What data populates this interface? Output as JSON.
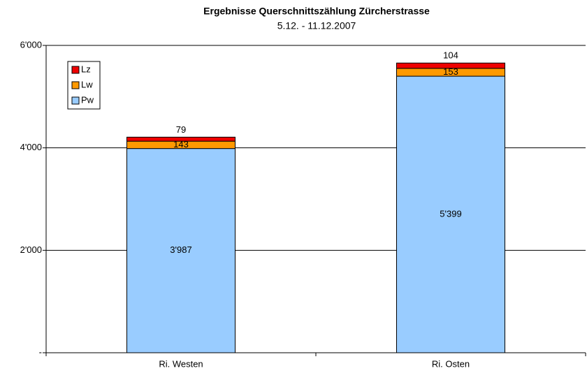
{
  "chart_data": {
    "type": "stacked_bar",
    "title": "Ergebnisse Querschnittszählung Zürcherstrasse",
    "subtitle": "5.12. - 11.12.2007",
    "categories": [
      "Ri. Westen",
      "Ri. Osten"
    ],
    "series": [
      {
        "name": "Pw",
        "color": "#99ccff",
        "values": [
          3987,
          5399
        ],
        "value_labels": [
          "3'987",
          "5'399"
        ]
      },
      {
        "name": "Lw",
        "color": "#ff9900",
        "values": [
          143,
          153
        ]
      },
      {
        "name": "Lz",
        "color": "#ee0000",
        "values": [
          79,
          104
        ]
      }
    ],
    "ylim": [
      0,
      6000
    ],
    "yticks": [
      {
        "value": 0,
        "label": "-"
      },
      {
        "value": 2000,
        "label": "2'000"
      },
      {
        "value": 4000,
        "label": "4'000"
      },
      {
        "value": 6000,
        "label": "6'000"
      }
    ],
    "grid": true,
    "legend": "top-left"
  }
}
